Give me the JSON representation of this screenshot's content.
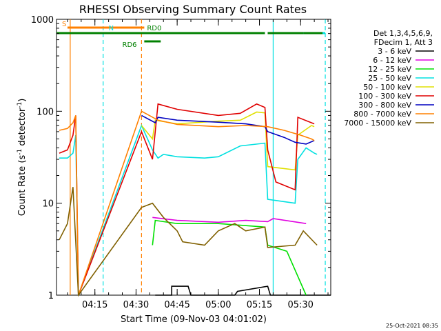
{
  "chart_data": {
    "type": "line",
    "title": "RHESSI Observing Summary Count Rates",
    "xlabel": "Start Time (09-Nov-03 04:01:02)",
    "ylabel_prefix": "Count Rate (s",
    "ylabel_sup1": "-1",
    "ylabel_mid": " detector",
    "ylabel_sup2": "-1",
    "ylabel_suffix": ")",
    "y_scale": "log",
    "ylim": [
      1,
      1000
    ],
    "y_ticks": [
      {
        "value": 1,
        "label": "1"
      },
      {
        "value": 10,
        "label": "10"
      },
      {
        "value": 100,
        "label": "100"
      },
      {
        "value": 1000,
        "label": "1000"
      }
    ],
    "xlim": [
      "04:01",
      "05:41"
    ],
    "x_ticks": [
      "04:15",
      "04:30",
      "04:45",
      "05:00",
      "05:15",
      "05:30"
    ],
    "timestamp": "25-Oct-2021 08:35",
    "legend_header": [
      "Det 1,3,4,5,6,9,",
      "FDecim 1, Att 3"
    ],
    "legend_position": "right",
    "series": [
      {
        "name": "3 - 6 keV",
        "color": "#000000",
        "points": [
          [
            "04:37",
            1
          ],
          [
            "04:43",
            1
          ],
          [
            "04:43",
            1.25
          ],
          [
            "04:49",
            1.25
          ],
          [
            "04:50",
            1
          ],
          [
            "05:06",
            1
          ],
          [
            "05:07",
            1.1
          ],
          [
            "05:18",
            1.25
          ],
          [
            "05:19",
            1
          ],
          [
            "05:41",
            1
          ]
        ]
      },
      {
        "name": "6 - 12 keV",
        "color": "#e000e0",
        "points": [
          [
            "04:36",
            7
          ],
          [
            "04:45",
            6.5
          ],
          [
            "05:00",
            6.2
          ],
          [
            "05:10",
            6.5
          ],
          [
            "05:18",
            6.3
          ],
          [
            "05:20",
            6.8
          ],
          [
            "05:32",
            6
          ]
        ]
      },
      {
        "name": "12 - 25 keV",
        "color": "#00e000",
        "points": [
          [
            "04:36",
            3.5
          ],
          [
            "04:37",
            6.5
          ],
          [
            "04:45",
            6
          ],
          [
            "05:00",
            6
          ],
          [
            "05:17",
            5.5
          ],
          [
            "05:18",
            3.5
          ],
          [
            "05:25",
            3
          ],
          [
            "05:32",
            1
          ]
        ]
      },
      {
        "name": "25 - 50 keV",
        "color": "#00e0e0",
        "points": [
          [
            "04:02",
            31
          ],
          [
            "04:05",
            31
          ],
          [
            "04:07",
            35
          ],
          [
            "04:08",
            55
          ],
          [
            "04:09",
            1
          ],
          [
            "04:32",
            70
          ],
          [
            "04:36",
            38
          ],
          [
            "04:38",
            31
          ],
          [
            "04:40",
            34
          ],
          [
            "04:45",
            32
          ],
          [
            "04:55",
            31
          ],
          [
            "05:00",
            32
          ],
          [
            "05:08",
            42
          ],
          [
            "05:17",
            45
          ],
          [
            "05:18",
            11
          ],
          [
            "05:28",
            10
          ],
          [
            "05:29",
            30
          ],
          [
            "05:32",
            40
          ],
          [
            "05:35",
            35
          ],
          [
            "05:36",
            34
          ]
        ]
      },
      {
        "name": "50 - 100 keV",
        "color": "#e0e000",
        "points": [
          [
            "04:32",
            70
          ],
          [
            "04:36",
            50
          ],
          [
            "04:37",
            80
          ],
          [
            "04:45",
            73
          ],
          [
            "05:00",
            78
          ],
          [
            "05:08",
            80
          ],
          [
            "05:14",
            98
          ],
          [
            "05:17",
            96
          ],
          [
            "05:18",
            25
          ],
          [
            "05:28",
            23
          ],
          [
            "05:29",
            55
          ],
          [
            "05:34",
            70
          ],
          [
            "05:35",
            68
          ]
        ]
      },
      {
        "name": "100 - 300 keV",
        "color": "#e00000",
        "points": [
          [
            "04:02",
            35
          ],
          [
            "04:05",
            38
          ],
          [
            "04:07",
            55
          ],
          [
            "04:08",
            90
          ],
          [
            "04:09",
            1
          ],
          [
            "04:32",
            60
          ],
          [
            "04:36",
            30
          ],
          [
            "04:38",
            120
          ],
          [
            "04:45",
            105
          ],
          [
            "05:00",
            90
          ],
          [
            "05:08",
            95
          ],
          [
            "05:14",
            120
          ],
          [
            "05:17",
            110
          ],
          [
            "05:18",
            38
          ],
          [
            "05:21",
            17
          ],
          [
            "05:28",
            14
          ],
          [
            "05:29",
            86
          ],
          [
            "05:35",
            73
          ]
        ]
      },
      {
        "name": "300 - 800 keV",
        "color": "#0000c0",
        "points": [
          [
            "04:32",
            90
          ],
          [
            "04:37",
            75
          ],
          [
            "04:38",
            86
          ],
          [
            "04:45",
            80
          ],
          [
            "05:00",
            76
          ],
          [
            "05:10",
            73
          ],
          [
            "05:17",
            68
          ],
          [
            "05:18",
            60
          ],
          [
            "05:24",
            52
          ],
          [
            "05:28",
            46
          ],
          [
            "05:32",
            44
          ],
          [
            "05:35",
            48
          ]
        ]
      },
      {
        "name": "800 - 7000 keV",
        "color": "#ff8000",
        "points": [
          [
            "04:02",
            62
          ],
          [
            "04:05",
            65
          ],
          [
            "04:07",
            75
          ],
          [
            "04:08",
            90
          ],
          [
            "04:09",
            1
          ],
          [
            "04:32",
            100
          ],
          [
            "04:38",
            80
          ],
          [
            "04:45",
            72
          ],
          [
            "05:00",
            68
          ],
          [
            "05:10",
            70
          ],
          [
            "05:18",
            68
          ],
          [
            "05:24",
            62
          ],
          [
            "05:30",
            55
          ],
          [
            "05:34",
            50
          ],
          [
            "05:35",
            48
          ]
        ]
      },
      {
        "name": "7000 - 15000 keV",
        "color": "#806000",
        "points": [
          [
            "04:02",
            4
          ],
          [
            "04:05",
            6
          ],
          [
            "04:07",
            15
          ],
          [
            "04:09",
            1
          ],
          [
            "04:32",
            9
          ],
          [
            "04:36",
            10
          ],
          [
            "04:40",
            7
          ],
          [
            "04:45",
            5
          ],
          [
            "04:47",
            3.8
          ],
          [
            "04:55",
            3.5
          ],
          [
            "05:00",
            5
          ],
          [
            "05:06",
            6
          ],
          [
            "05:10",
            5
          ],
          [
            "05:17",
            5.5
          ],
          [
            "05:18",
            3.3
          ],
          [
            "05:28",
            3.5
          ],
          [
            "05:31",
            5
          ],
          [
            "05:36",
            3.5
          ]
        ]
      }
    ],
    "bars": [
      {
        "label": "S",
        "color": "#ff8000",
        "label_at": "04:03",
        "label_level": "upper",
        "segments": [
          [
            "04:05",
            "04:33"
          ]
        ]
      },
      {
        "label": "N",
        "color": "#00e0e0",
        "label_at": "04:20",
        "label_level": "mid",
        "segments": [
          [
            "04:01",
            "04:18"
          ],
          [
            "05:20",
            "05:39"
          ]
        ]
      },
      {
        "label": "RD0",
        "color": "#008000",
        "label_at": "04:34",
        "label_level": "mid",
        "segments": [
          [
            "04:01",
            "05:17"
          ],
          [
            "05:18",
            "05:31"
          ],
          [
            "05:31",
            "05:38"
          ]
        ]
      },
      {
        "label": "RD6",
        "color": "#008000",
        "label_at": "04:25",
        "label_level": "lower",
        "segments": [
          [
            "04:33",
            "04:39"
          ]
        ]
      }
    ],
    "vlines": [
      {
        "time": "04:06",
        "color": "#ff8000",
        "style": "solid"
      },
      {
        "time": "04:18",
        "color": "#00e0e0",
        "style": "dashed"
      },
      {
        "time": "04:32",
        "color": "#ff8000",
        "style": "dashed"
      },
      {
        "time": "05:20",
        "color": "#00e0e0",
        "style": "solid"
      },
      {
        "time": "05:39",
        "color": "#00e0e0",
        "style": "dashed"
      }
    ]
  }
}
